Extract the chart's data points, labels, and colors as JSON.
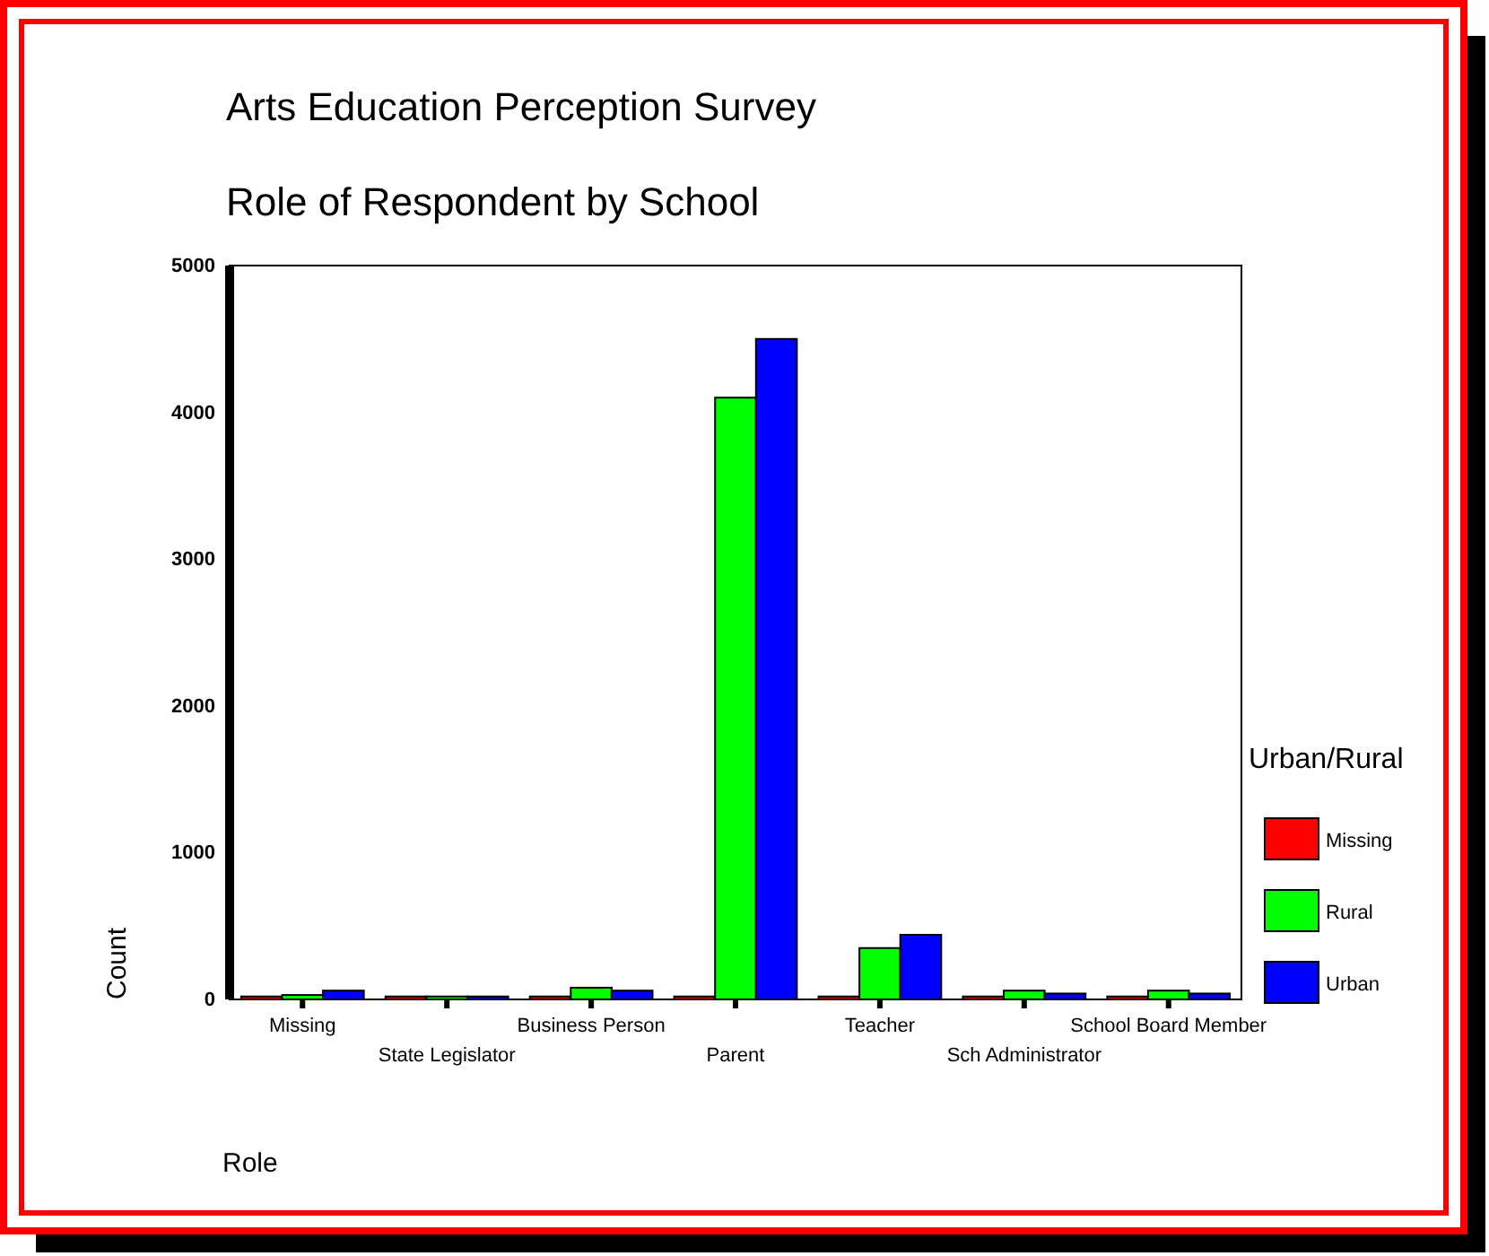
{
  "chart_data": {
    "type": "bar",
    "title": "Arts Education Perception Survey",
    "subtitle": "Role of Respondent by School",
    "xlabel": "Role",
    "ylabel": "Count",
    "legend_title": "Urban/Rural",
    "legend": "right",
    "grid": false,
    "categories": [
      "Missing",
      "State Legislator",
      "Business Person",
      "Parent",
      "Teacher",
      "Sch Administrator",
      "School Board Member"
    ],
    "series": [
      {
        "name": "Missing",
        "color": "#ff0000",
        "values": [
          20,
          20,
          20,
          20,
          20,
          20,
          20
        ]
      },
      {
        "name": "Rural",
        "color": "#00ff00",
        "values": [
          30,
          20,
          80,
          4100,
          350,
          60,
          60
        ]
      },
      {
        "name": "Urban",
        "color": "#0000ff",
        "values": [
          60,
          20,
          60,
          4500,
          440,
          40,
          40
        ]
      }
    ],
    "ylim": [
      0,
      5000
    ],
    "yticks": [
      0,
      1000,
      2000,
      3000,
      4000,
      5000
    ]
  }
}
